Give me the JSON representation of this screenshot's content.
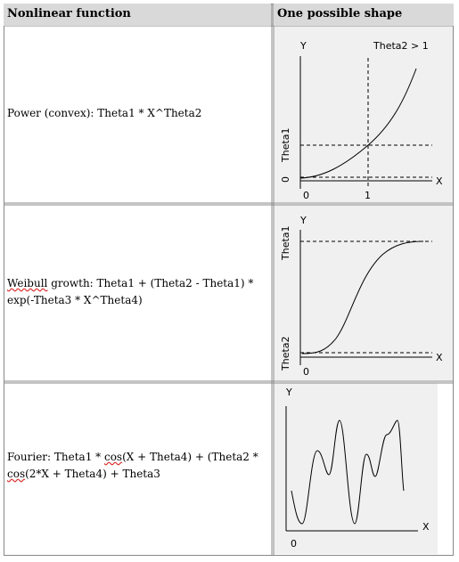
{
  "table": {
    "header": {
      "col1": "Nonlinear function",
      "col2": "One possible shape"
    },
    "rows": [
      {
        "function": "Power (convex): Theta1 * X^Theta2",
        "plot": {
          "y_axis": "Y",
          "x_axis": "X",
          "annotation": "Theta2 > 1",
          "y_tick_upper": "Theta1",
          "y_tick_lower": "0",
          "x_tick_0": "0",
          "x_tick_1": "1"
        }
      },
      {
        "function_part1": "Weibull",
        "function_part2": " growth: Theta1 + (Theta2 - Theta1) * exp(-Theta3 * X^Theta4)",
        "plot": {
          "y_axis": "Y",
          "x_axis": "X",
          "y_tick_upper": "Theta1",
          "y_tick_lower": "Theta2",
          "x_tick_0": "0"
        }
      },
      {
        "function_a": "Fourier: Theta1 * ",
        "function_cos1": "cos",
        "function_b": "(X + Theta4) + (Theta2 * ",
        "function_cos2": "cos",
        "function_c": "(2*X + Theta4) + Theta3",
        "plot": {
          "y_axis": "Y",
          "x_axis": "X",
          "x_tick_0": "0"
        }
      }
    ]
  },
  "colors": {
    "header_bg": "#d9d9d9",
    "plot_bg": "#f0f0f0",
    "border": "#888888"
  }
}
